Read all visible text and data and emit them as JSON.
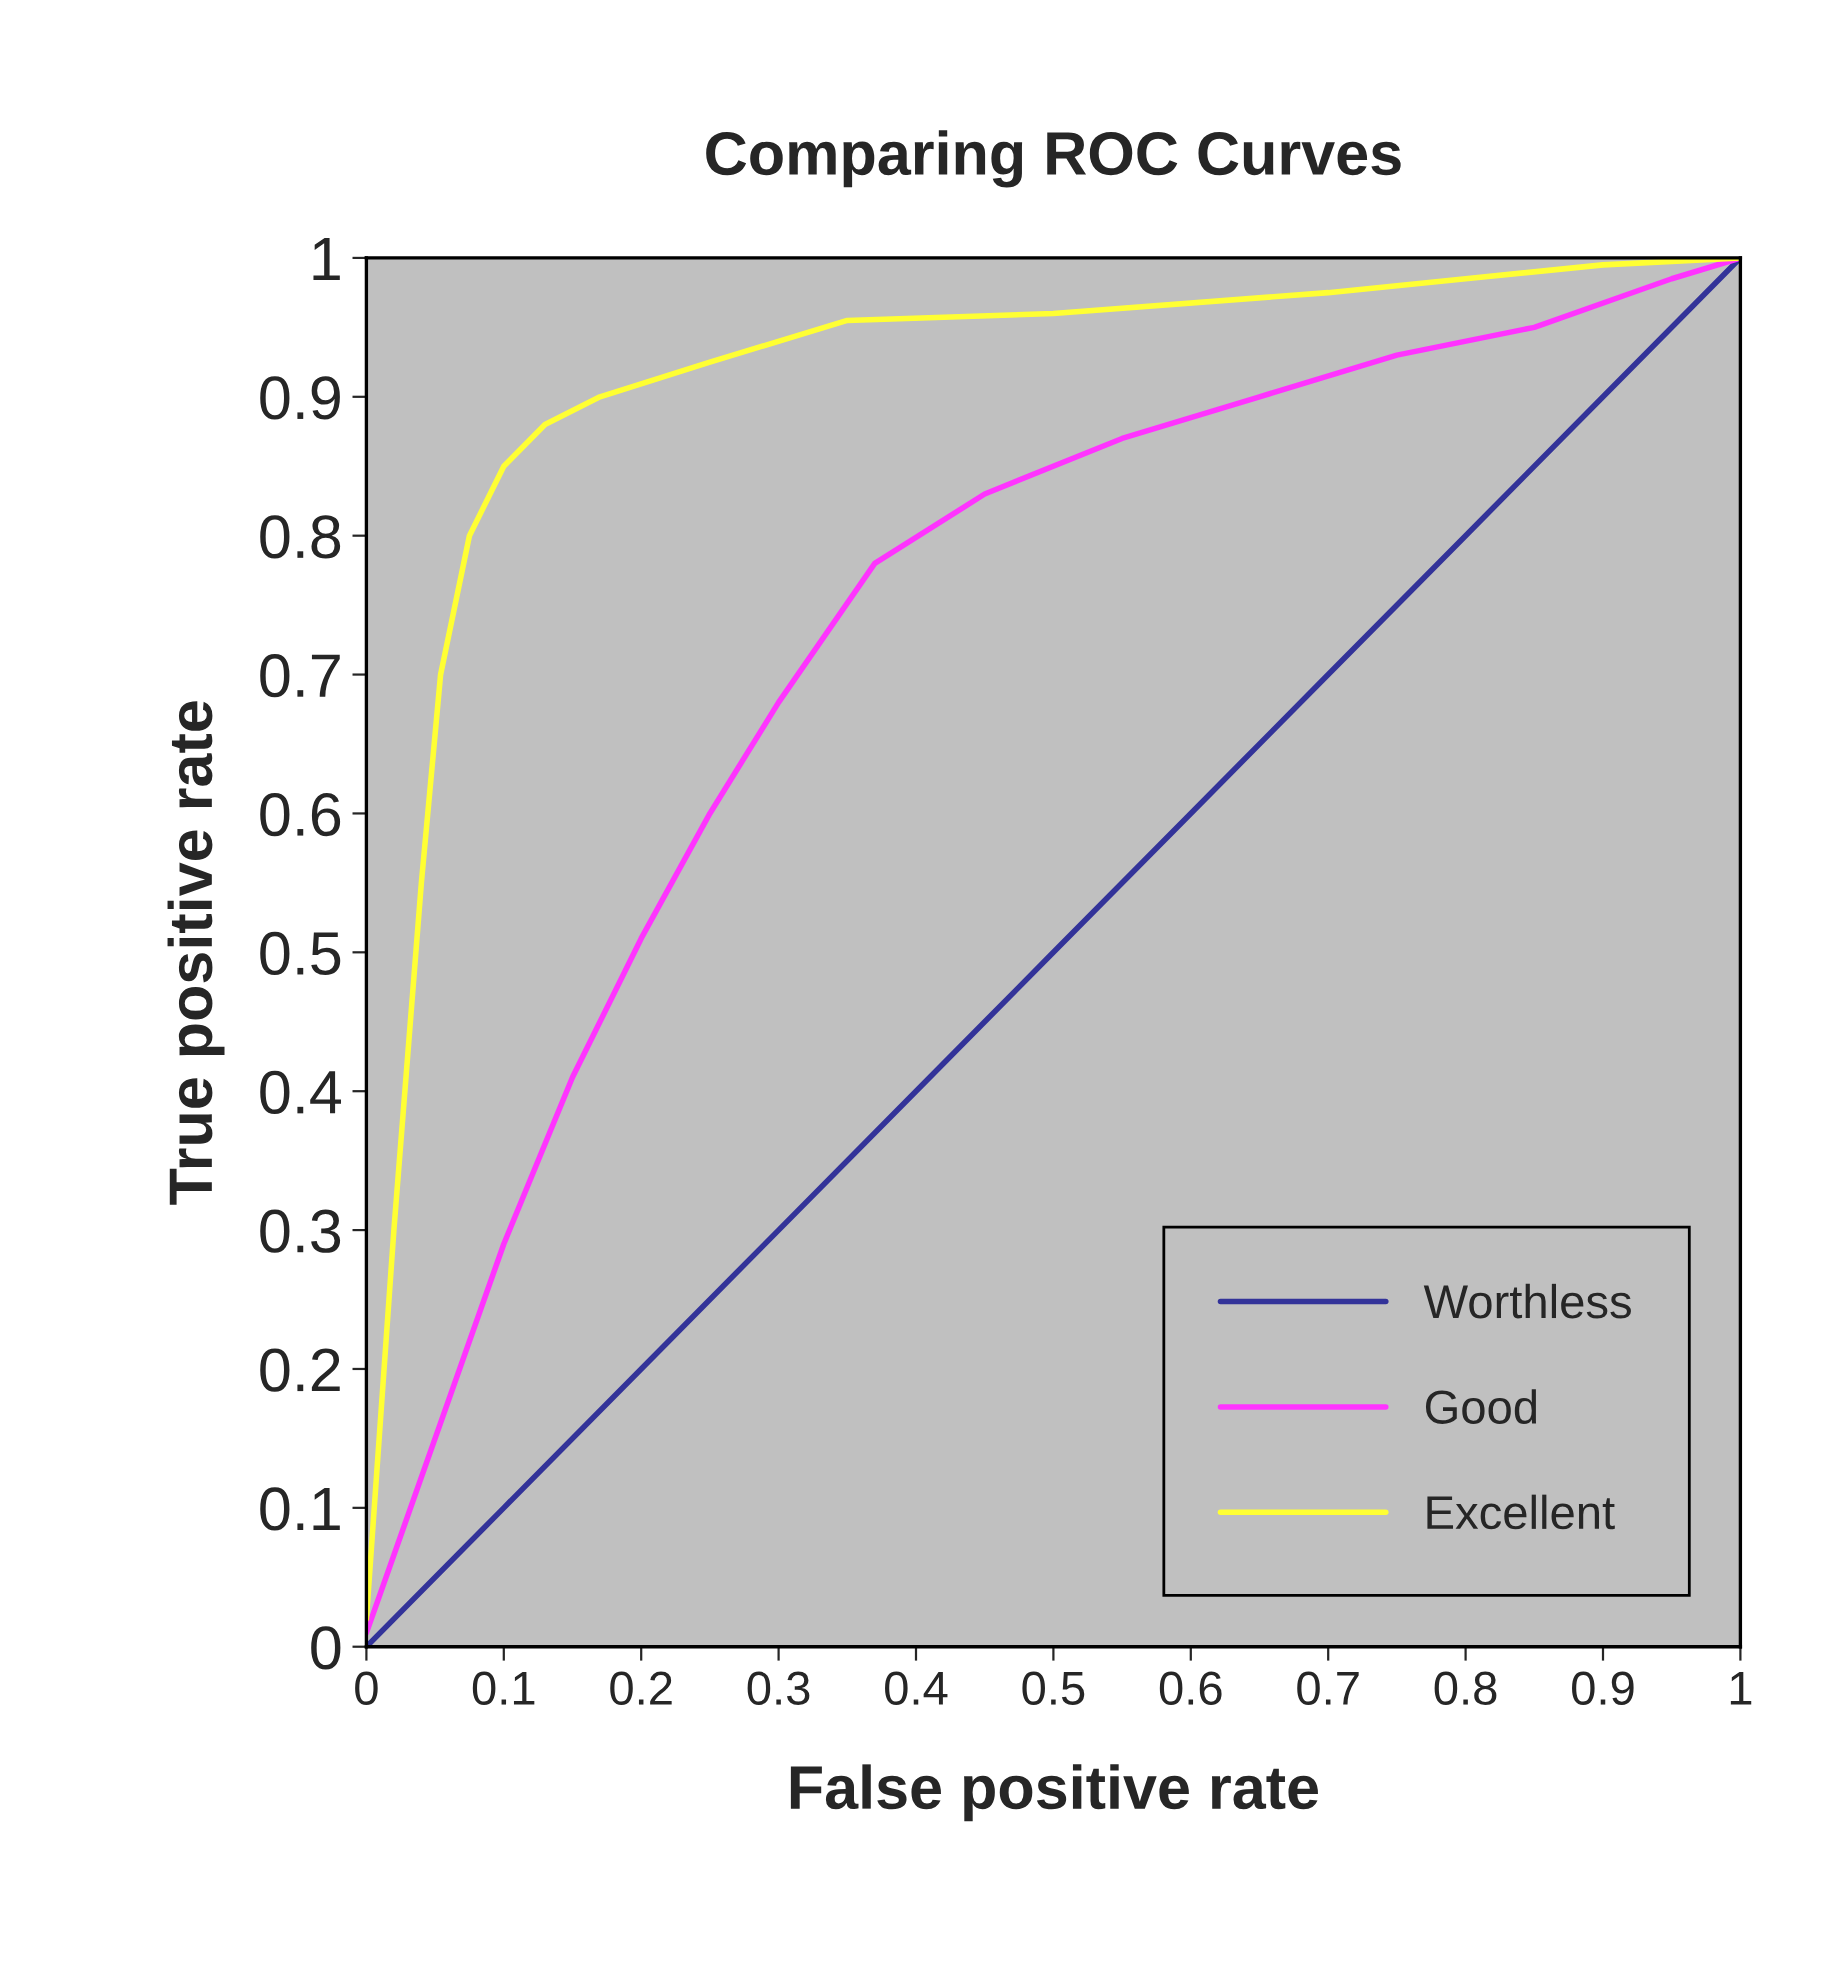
{
  "chart_data": {
    "type": "line",
    "title": "Comparing ROC Curves",
    "xlabel": "False positive rate",
    "ylabel": "True positive rate",
    "xlim": [
      0,
      1
    ],
    "ylim": [
      0,
      1
    ],
    "xticks": [
      0,
      0.1,
      0.2,
      0.3,
      0.4,
      0.5,
      0.6,
      0.7,
      0.8,
      0.9,
      1
    ],
    "yticks": [
      0,
      0.1,
      0.2,
      0.3,
      0.4,
      0.5,
      0.6,
      0.7,
      0.8,
      0.9,
      1
    ],
    "grid": false,
    "legend": "bottom right",
    "marker": "none",
    "line_style": "solid",
    "series": [
      {
        "name": "Worthless",
        "color": "#333399",
        "x": [
          0,
          0.1,
          0.2,
          0.3,
          0.4,
          0.5,
          0.6,
          0.7,
          0.8,
          0.9,
          1
        ],
        "values": [
          0,
          0.1,
          0.2,
          0.3,
          0.4,
          0.5,
          0.6,
          0.7,
          0.8,
          0.9,
          1
        ]
      },
      {
        "name": "Good",
        "color": "#ff33ff",
        "x": [
          0,
          0.05,
          0.1,
          0.15,
          0.2,
          0.25,
          0.3,
          0.37,
          0.45,
          0.55,
          0.65,
          0.75,
          0.85,
          0.95,
          1
        ],
        "values": [
          0.01,
          0.15,
          0.29,
          0.41,
          0.51,
          0.6,
          0.68,
          0.78,
          0.83,
          0.87,
          0.9,
          0.93,
          0.95,
          0.985,
          1
        ]
      },
      {
        "name": "Excellent",
        "color": "#ffff33",
        "x": [
          0,
          0.02,
          0.04,
          0.054,
          0.075,
          0.1,
          0.13,
          0.17,
          0.25,
          0.35,
          0.5,
          0.7,
          0.8,
          0.9,
          1
        ],
        "values": [
          0.02,
          0.3,
          0.55,
          0.7,
          0.8,
          0.85,
          0.88,
          0.9,
          0.925,
          0.955,
          0.96,
          0.975,
          0.985,
          0.995,
          1
        ]
      }
    ]
  }
}
